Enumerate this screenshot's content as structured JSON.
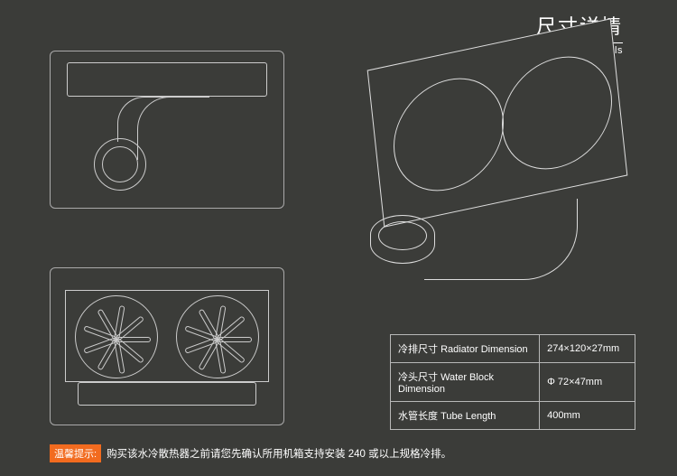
{
  "title": {
    "cn": "尺寸详情",
    "en": "Size Details"
  },
  "specs": [
    {
      "label_cn": "冷排尺寸",
      "label_en": "Radiator Dimension",
      "value": "274×120×27mm"
    },
    {
      "label_cn": "冷头尺寸",
      "label_en": "Water Block Dimension",
      "value": "Φ 72×47mm"
    },
    {
      "label_cn": "水管长度",
      "label_en": "Tube Length",
      "value": "400mm"
    }
  ],
  "warning": {
    "badge": "温馨提示:",
    "text": "购买该水冷散热器之前请您先确认所用机箱支持安装 240 或以上规格冷排。"
  },
  "colors": {
    "bg": "#3b3c39",
    "line": "#cccccc",
    "accent": "#f26b1f",
    "text": "#ffffff",
    "border": "#b8b8b8"
  }
}
